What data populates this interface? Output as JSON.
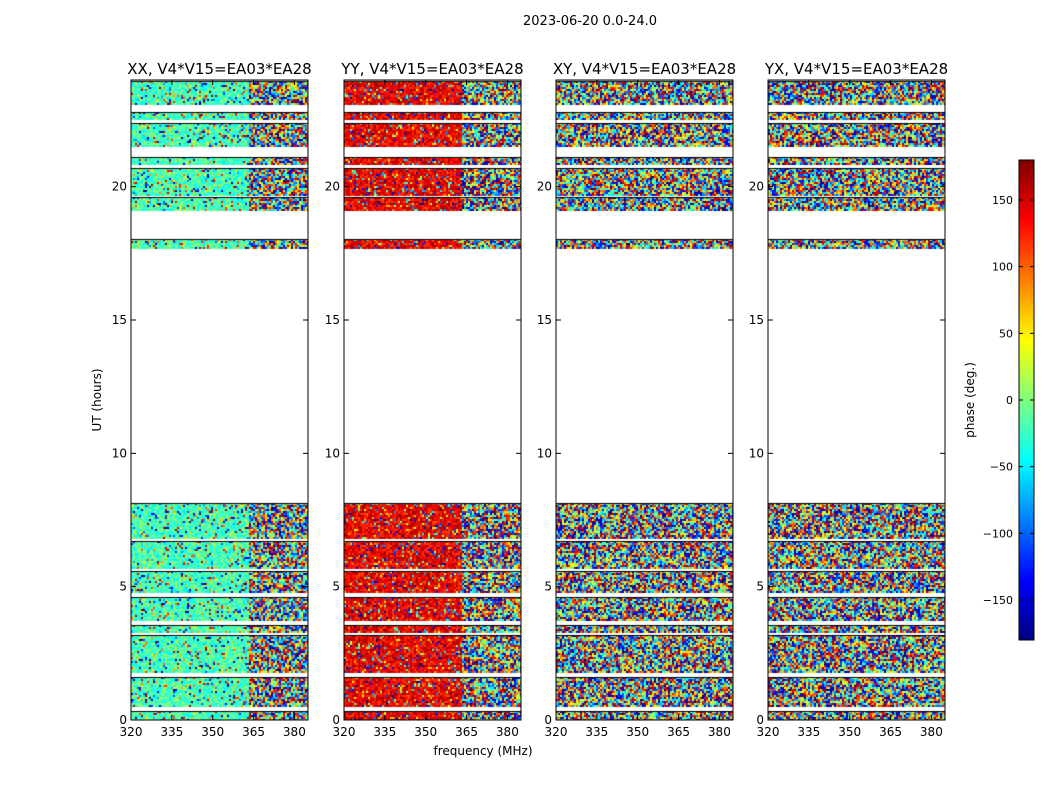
{
  "figure": {
    "suptitle": "2023-06-20 0.0-24.0",
    "xlabel": "frequency (MHz)",
    "ylabel": "UT (hours)"
  },
  "chart_data": {
    "type": "heatmap",
    "xlim": [
      320,
      385
    ],
    "ylim": [
      0,
      24
    ],
    "xticks": [
      320,
      335,
      350,
      365,
      380
    ],
    "yticks": [
      0,
      5,
      10,
      15,
      20
    ],
    "colorbar": {
      "label": "phase (deg.)",
      "range": [
        -180,
        180
      ],
      "ticks": [
        -150,
        -100,
        -50,
        0,
        50,
        100,
        150
      ],
      "colormap": [
        "#00007f",
        "#0000ff",
        "#007fff",
        "#00ffff",
        "#7fff7f",
        "#ffff00",
        "#ff7f00",
        "#ff0000",
        "#7f0000"
      ]
    },
    "data_time_bands_hours": [
      [
        0.0,
        0.35
      ],
      [
        0.5,
        1.6
      ],
      [
        1.75,
        3.2
      ],
      [
        3.25,
        3.55
      ],
      [
        3.7,
        4.6
      ],
      [
        4.8,
        5.6
      ],
      [
        5.7,
        6.7
      ],
      [
        6.8,
        8.15
      ],
      [
        17.7,
        18.05
      ],
      [
        19.1,
        19.6
      ],
      [
        19.7,
        20.7
      ],
      [
        20.8,
        21.1
      ],
      [
        21.5,
        22.4
      ],
      [
        22.5,
        22.8
      ],
      [
        23.1,
        23.95
      ]
    ],
    "panels": [
      {
        "title": "XX, V4*V15=EA03*EA28",
        "coherent_phase_deg": -20,
        "coherent_until_mhz": 363
      },
      {
        "title": "YY, V4*V15=EA03*EA28",
        "coherent_phase_deg": 140,
        "coherent_until_mhz": 363
      },
      {
        "title": "XY, V4*V15=EA03*EA28",
        "coherent_phase_deg": null,
        "coherent_until_mhz": null
      },
      {
        "title": "YX, V4*V15=EA03*EA28",
        "coherent_phase_deg": null,
        "coherent_until_mhz": null
      }
    ]
  }
}
